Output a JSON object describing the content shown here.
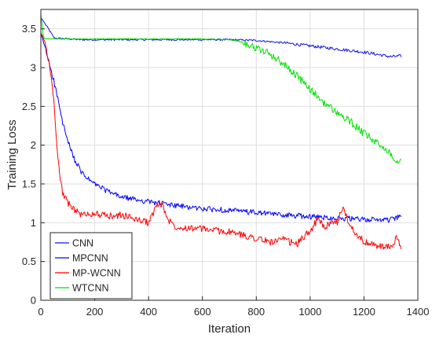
{
  "chart_data": {
    "type": "line",
    "title": "",
    "xlabel": "Iteration",
    "ylabel": "Training Loss",
    "xlim": [
      0,
      1400
    ],
    "ylim": [
      0,
      3.75
    ],
    "xticks": [
      0,
      200,
      400,
      600,
      800,
      1000,
      1200,
      1400
    ],
    "yticks": [
      0,
      0.5,
      1,
      1.5,
      2,
      2.5,
      3,
      3.5
    ],
    "xtick_labels": [
      "0",
      "200",
      "400",
      "600",
      "800",
      "1000",
      "1200",
      "1400"
    ],
    "ytick_labels": [
      "0",
      "0.5",
      "1",
      "1.5",
      "2",
      "2.5",
      "3",
      "3.5"
    ],
    "grid": true,
    "legend_position": "bottom-left",
    "series": [
      {
        "name": "CNN",
        "color": "#1414e6",
        "x": [
          0,
          50,
          100,
          150,
          200,
          300,
          400,
          500,
          600,
          700,
          800,
          900,
          950,
          1000,
          1100,
          1200,
          1250,
          1300,
          1340
        ],
        "y": [
          3.65,
          3.38,
          3.37,
          3.36,
          3.36,
          3.36,
          3.36,
          3.36,
          3.36,
          3.36,
          3.35,
          3.32,
          3.3,
          3.28,
          3.24,
          3.2,
          3.17,
          3.14,
          3.15
        ]
      },
      {
        "name": "MPCNN",
        "color": "#0000ff",
        "x": [
          0,
          20,
          40,
          60,
          80,
          100,
          120,
          150,
          180,
          200,
          250,
          300,
          350,
          400,
          450,
          500,
          600,
          700,
          800,
          900,
          1000,
          1100,
          1200,
          1300,
          1340
        ],
        "y": [
          3.45,
          3.2,
          2.95,
          2.65,
          2.3,
          2.05,
          1.85,
          1.65,
          1.55,
          1.5,
          1.4,
          1.33,
          1.3,
          1.27,
          1.25,
          1.22,
          1.18,
          1.16,
          1.13,
          1.1,
          1.08,
          1.06,
          1.04,
          1.04,
          1.08
        ]
      },
      {
        "name": "MP-WCNN",
        "color": "#ff0000",
        "x": [
          0,
          10,
          20,
          30,
          40,
          50,
          60,
          70,
          80,
          100,
          150,
          200,
          250,
          300,
          350,
          400,
          430,
          450,
          470,
          500,
          600,
          700,
          800,
          850,
          900,
          950,
          1000,
          1030,
          1050,
          1100,
          1120,
          1150,
          1200,
          1250,
          1300,
          1320,
          1340
        ],
        "y": [
          3.45,
          3.38,
          3.25,
          3.05,
          2.85,
          2.5,
          2.0,
          1.6,
          1.4,
          1.25,
          1.1,
          1.12,
          1.08,
          1.1,
          1.05,
          1.0,
          1.22,
          1.25,
          1.05,
          0.95,
          0.92,
          0.88,
          0.8,
          0.75,
          0.78,
          0.72,
          0.9,
          1.05,
          0.95,
          1.0,
          1.2,
          0.95,
          0.75,
          0.7,
          0.68,
          0.8,
          0.66
        ]
      },
      {
        "name": "WTCNN",
        "color": "#00e000",
        "x": [
          0,
          10,
          20,
          50,
          100,
          200,
          300,
          400,
          500,
          600,
          700,
          750,
          800,
          850,
          900,
          950,
          1000,
          1050,
          1100,
          1150,
          1200,
          1250,
          1300,
          1320,
          1340
        ],
        "y": [
          3.7,
          3.38,
          3.37,
          3.37,
          3.37,
          3.37,
          3.37,
          3.37,
          3.37,
          3.37,
          3.36,
          3.33,
          3.25,
          3.18,
          3.05,
          2.9,
          2.72,
          2.55,
          2.42,
          2.3,
          2.15,
          2.02,
          1.9,
          1.78,
          1.85
        ]
      }
    ]
  }
}
